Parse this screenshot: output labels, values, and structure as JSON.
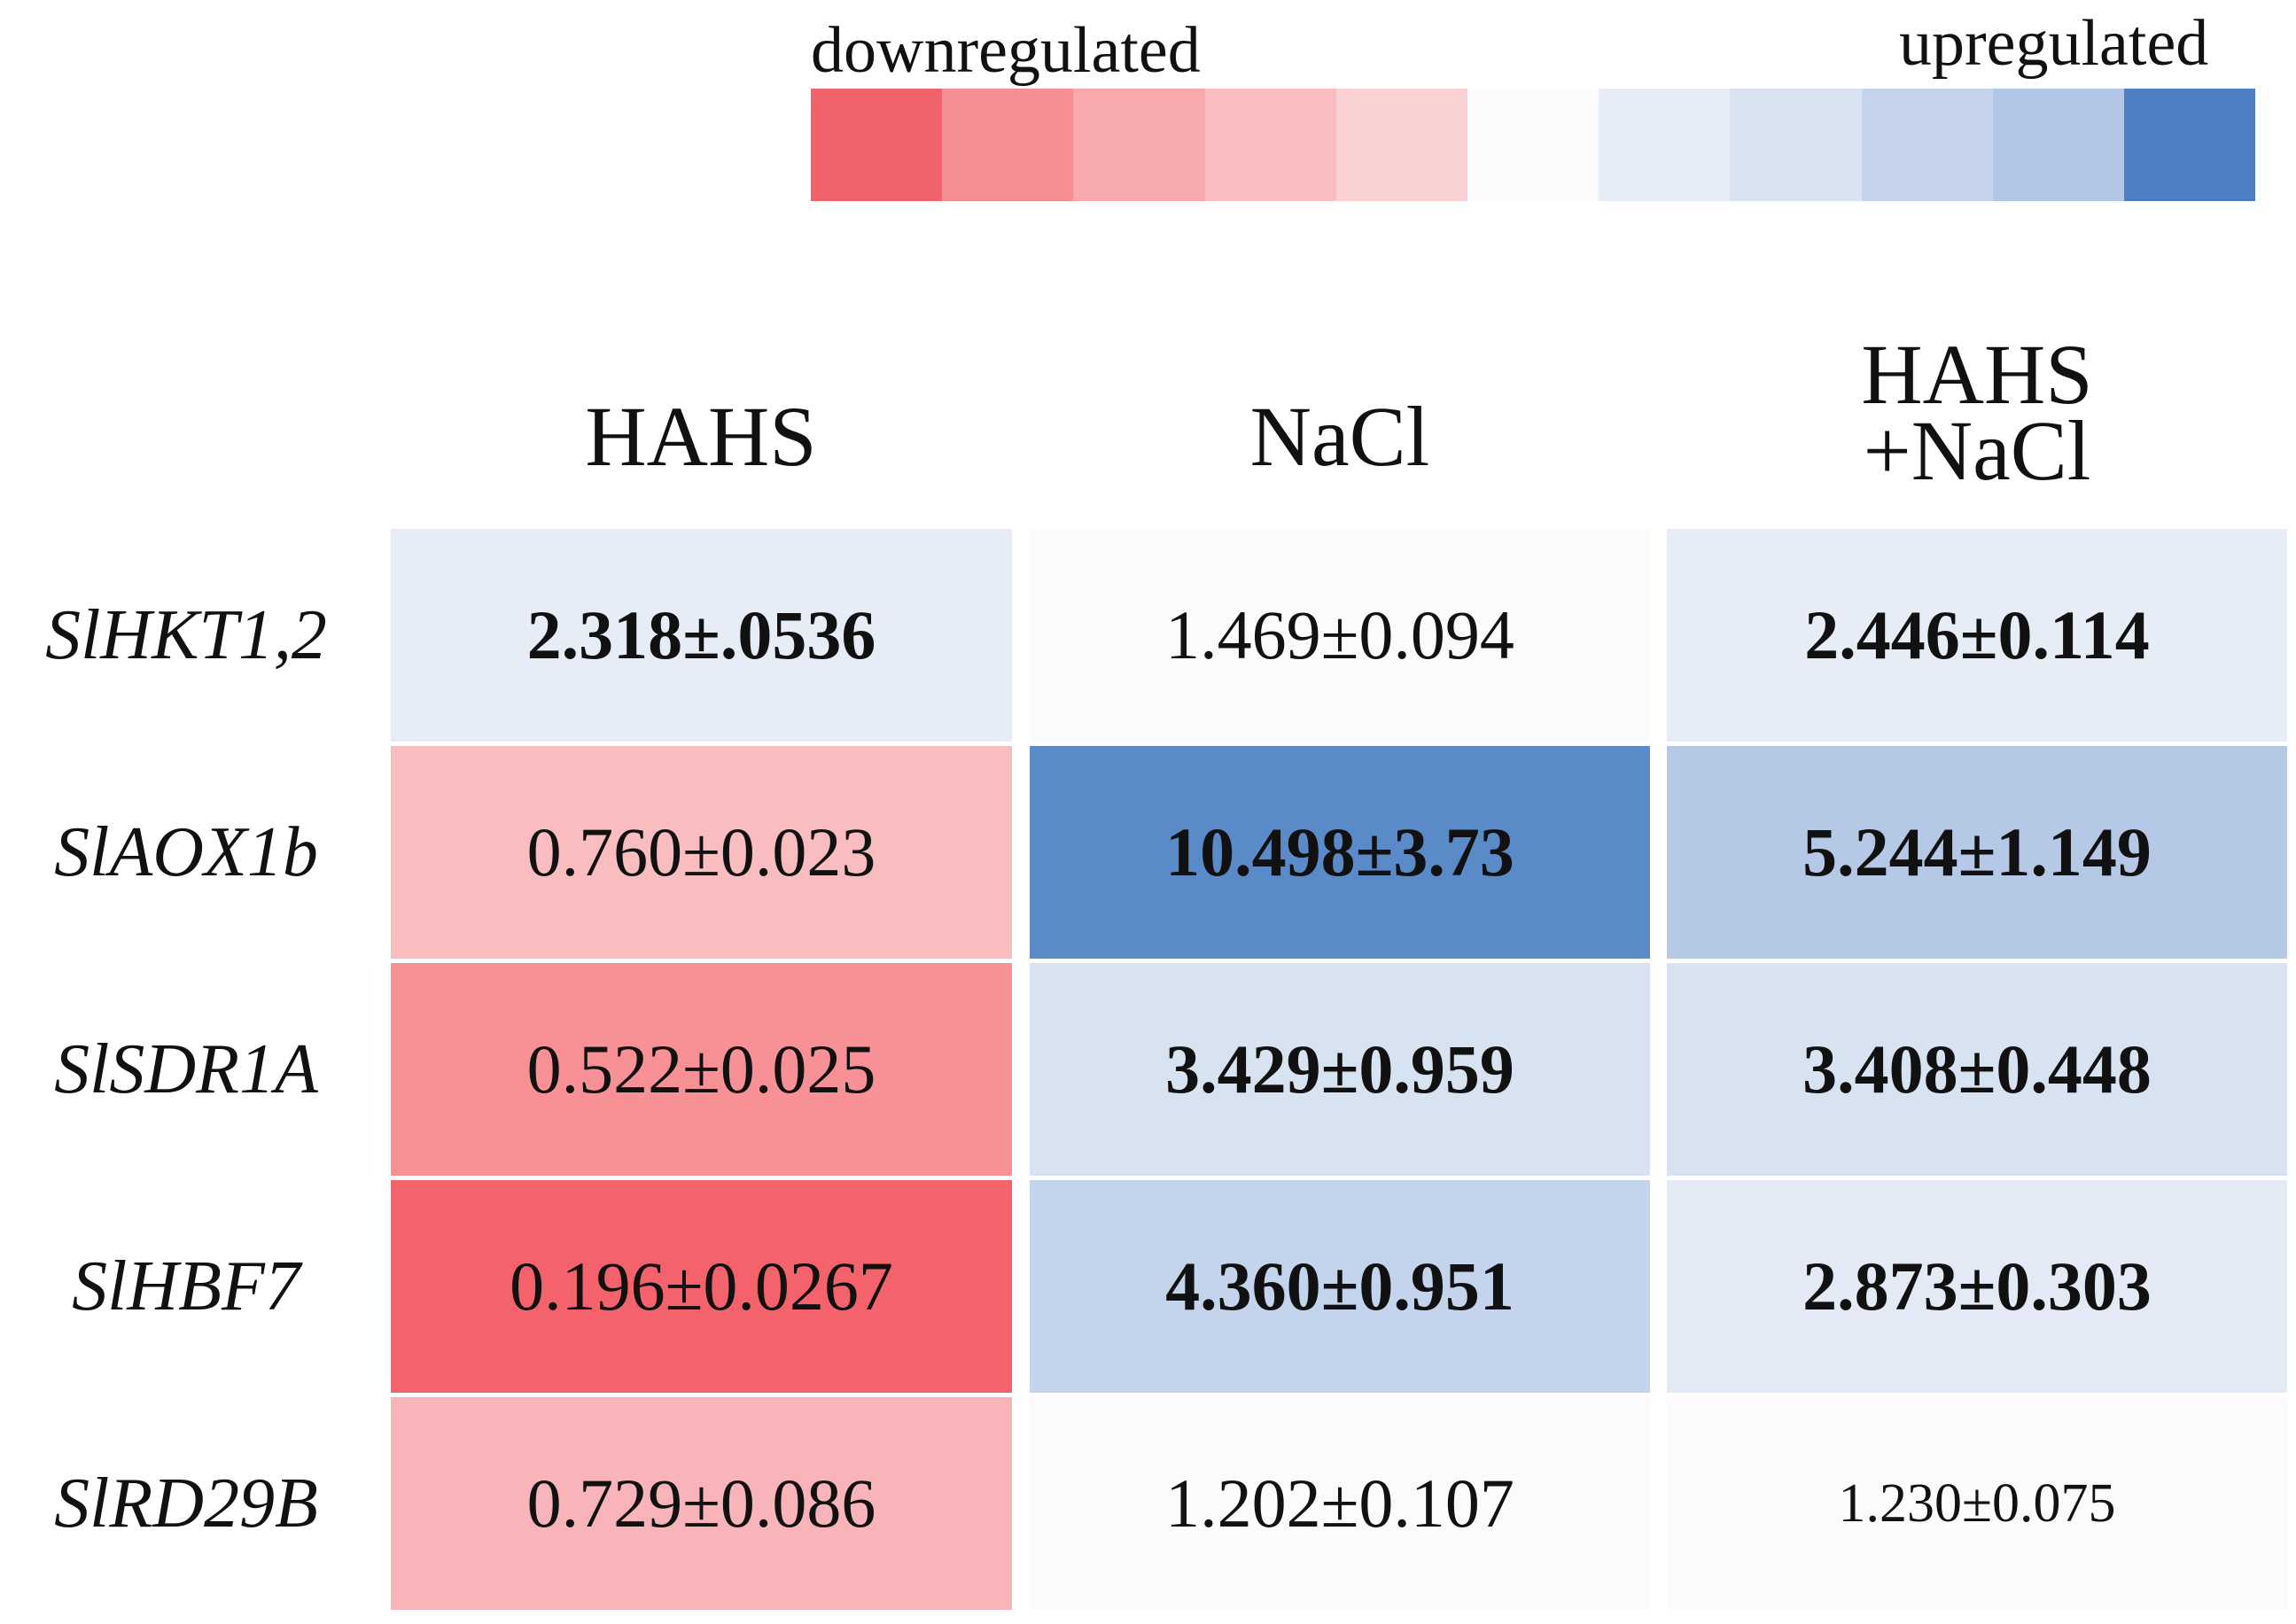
{
  "chart_data": {
    "type": "heatmap",
    "legend": {
      "low_label": "downregulated",
      "high_label": "upregulated",
      "colors": [
        "#f0636b",
        "#f68f93",
        "#f8a9ad",
        "#f9bdc1",
        "#fad2d4",
        "#fbfbfd",
        "#e7edf7",
        "#d8e2f1",
        "#c5d4ec",
        "#b2c6e6",
        "#4f7fc3"
      ]
    },
    "columns": [
      "HAHS",
      "NaCl"
    ],
    "column3": {
      "line1": "HAHS",
      "line2": "+NaCl"
    },
    "rows": [
      {
        "gene": "SlHKT1,2",
        "cells": [
          {
            "text": "2.318±.0536",
            "bold": true,
            "color": "#e6edf7"
          },
          {
            "text": "1.469±0.094",
            "bold": false,
            "color": "#fafbfd"
          },
          {
            "text": "2.446±0.114",
            "bold": true,
            "color": "#e6edf7"
          }
        ]
      },
      {
        "gene": "SlAOX1b",
        "cells": [
          {
            "text": "0.760±0.023",
            "bold": false,
            "color": "#f9bdc0"
          },
          {
            "text": "10.498±3.73",
            "bold": true,
            "color": "#5b8ac8"
          },
          {
            "text": "5.244±1.149",
            "bold": true,
            "color": "#b5c9e7"
          }
        ]
      },
      {
        "gene": "SlSDR1A",
        "cells": [
          {
            "text": "0.522±0.025",
            "bold": false,
            "color": "#f89195"
          },
          {
            "text": "3.429±0.959",
            "bold": true,
            "color": "#d8e3f2"
          },
          {
            "text": "3.408±0.448",
            "bold": true,
            "color": "#d8e3f2"
          }
        ]
      },
      {
        "gene": "SlHBF7",
        "cells": [
          {
            "text": "0.196±0.0267",
            "bold": false,
            "color": "#f4636b"
          },
          {
            "text": "4.360±0.951",
            "bold": true,
            "color": "#c4d4ec"
          },
          {
            "text": "2.873±0.303",
            "bold": true,
            "color": "#e4eaf5"
          }
        ]
      },
      {
        "gene": "SlRD29B",
        "cells": [
          {
            "text": "0.729±0.086",
            "bold": false,
            "color": "#f8b4b8"
          },
          {
            "text": "1.202±0.107",
            "bold": false,
            "color": "#fbfbfd"
          },
          {
            "text": "1.230±0.075",
            "bold": false,
            "color": "#fbfbfd",
            "small": true
          }
        ]
      }
    ]
  }
}
